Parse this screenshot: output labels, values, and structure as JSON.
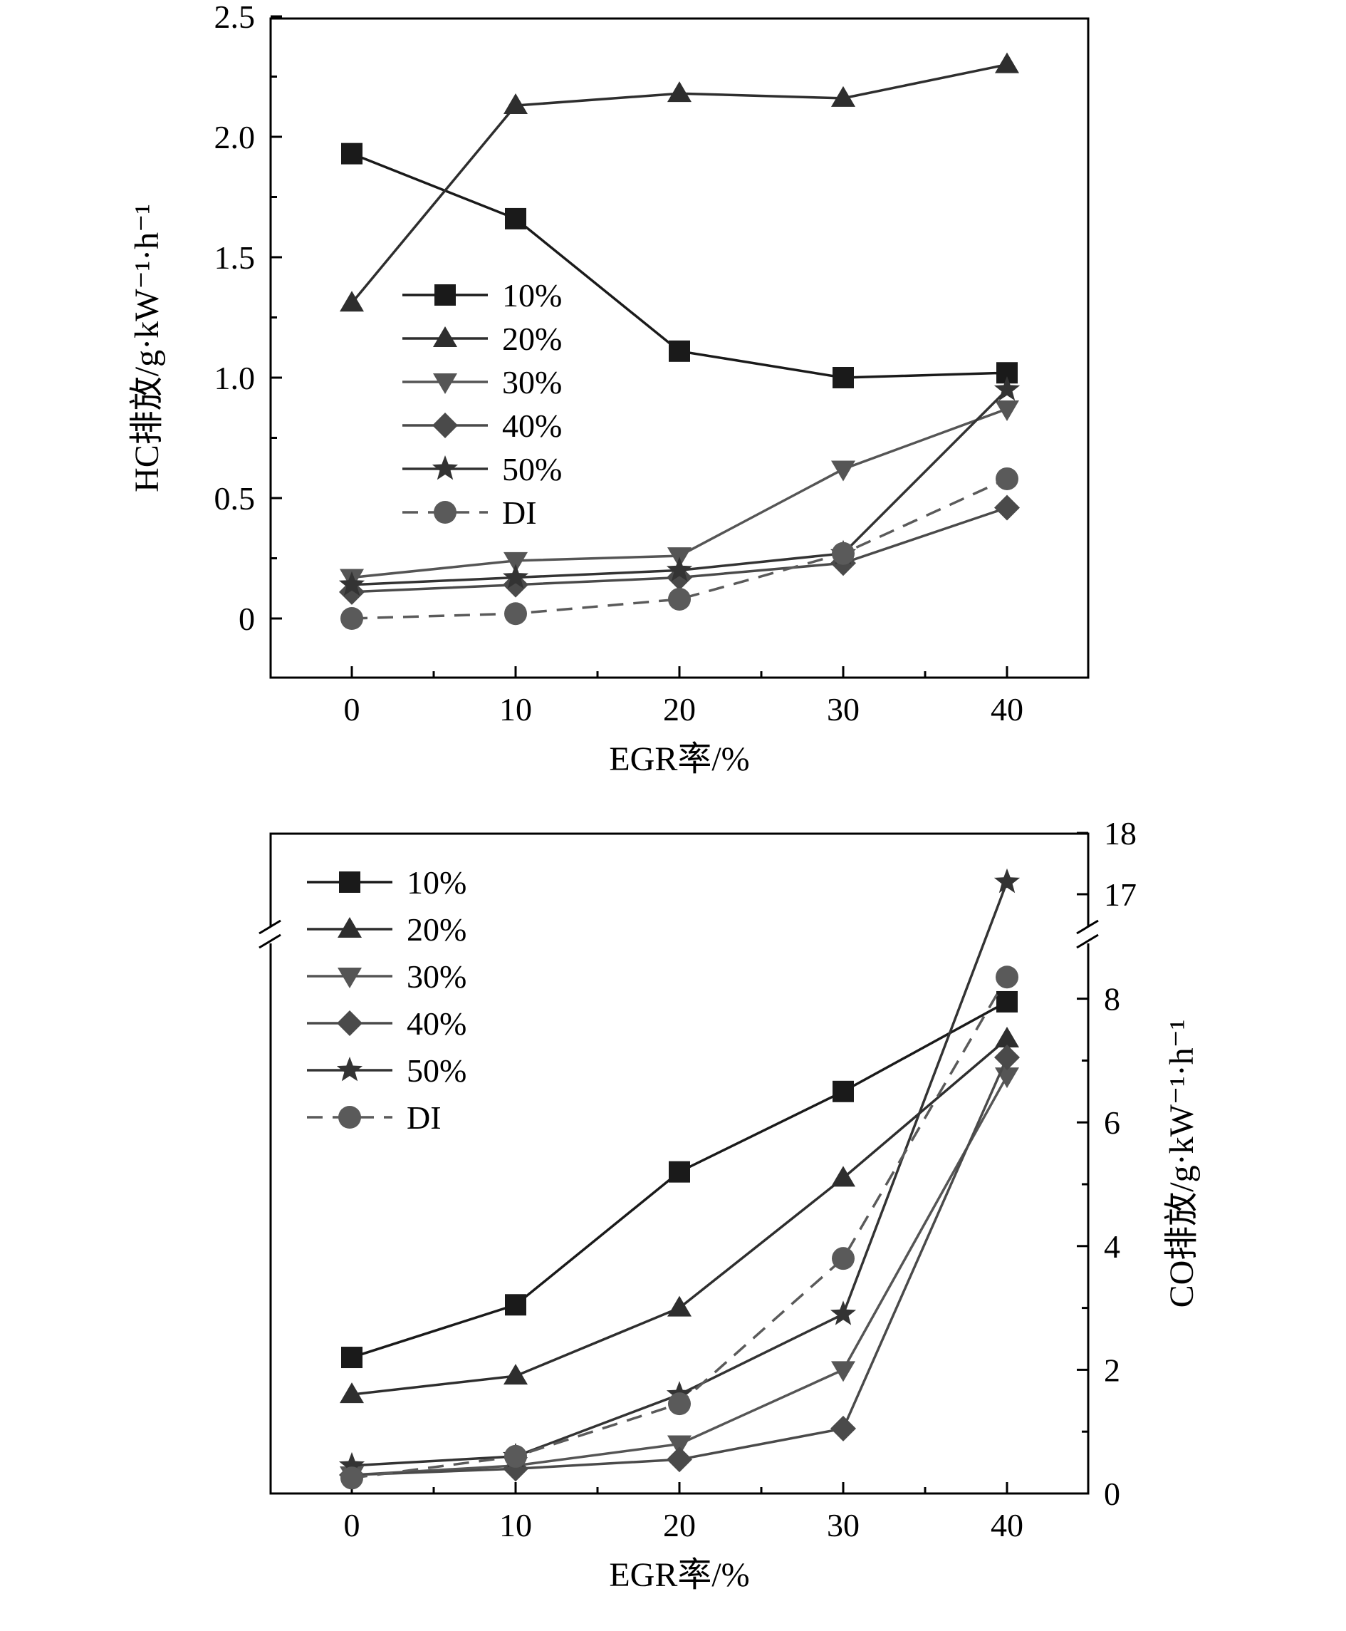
{
  "chart_data": [
    {
      "type": "line",
      "title": "",
      "xlabel": "EGR率/%",
      "ylabel": "HC排放/g·kW⁻¹·h⁻¹",
      "x": [
        0,
        10,
        20,
        30,
        40
      ],
      "x_tick_labels": [
        "0",
        "10",
        "20",
        "30",
        "40"
      ],
      "xlim": [
        -5,
        45
      ],
      "ylim": [
        -0.25,
        2.5
      ],
      "y_ticks": [
        0,
        0.5,
        1.0,
        1.5,
        2.0,
        2.5
      ],
      "y_tick_labels": [
        "0",
        "0.5",
        "1.0",
        "1.5",
        "2.0",
        "2.5"
      ],
      "y_axis_side": "left",
      "legend_position": "middle-left",
      "series": [
        {
          "name": "10%",
          "marker": "square",
          "color": "#1a1a1a",
          "dash": false,
          "values": [
            1.93,
            1.66,
            1.11,
            1.0,
            1.02
          ]
        },
        {
          "name": "20%",
          "marker": "triangle-up",
          "color": "#2e2e2e",
          "dash": false,
          "values": [
            1.31,
            2.13,
            2.18,
            2.16,
            2.3
          ]
        },
        {
          "name": "30%",
          "marker": "triangle-down",
          "color": "#555555",
          "dash": false,
          "values": [
            0.17,
            0.24,
            0.26,
            0.62,
            0.87
          ]
        },
        {
          "name": "40%",
          "marker": "diamond",
          "color": "#4a4a4a",
          "dash": false,
          "values": [
            0.11,
            0.14,
            0.17,
            0.23,
            0.46
          ]
        },
        {
          "name": "50%",
          "marker": "star",
          "color": "#333333",
          "dash": false,
          "values": [
            0.14,
            0.17,
            0.2,
            0.27,
            0.95
          ]
        },
        {
          "name": "DI",
          "marker": "circle",
          "color": "#5a5a5a",
          "dash": true,
          "values": [
            0.0,
            0.02,
            0.08,
            0.27,
            0.58
          ]
        }
      ]
    },
    {
      "type": "line",
      "title": "",
      "xlabel": "EGR率/%",
      "ylabel": "CO排放/g·kW⁻¹·h⁻¹",
      "x": [
        0,
        10,
        20,
        30,
        40
      ],
      "x_tick_labels": [
        "0",
        "10",
        "20",
        "30",
        "40"
      ],
      "xlim": [
        -5,
        45
      ],
      "ylim": [
        0,
        18
      ],
      "axis_break": [
        8.8,
        16.5
      ],
      "y_ticks": [
        0,
        2,
        4,
        6,
        8,
        17,
        18
      ],
      "y_tick_labels": [
        "0",
        "2",
        "4",
        "6",
        "8",
        "17",
        "18"
      ],
      "y_axis_side": "right",
      "legend_position": "top-left",
      "series": [
        {
          "name": "10%",
          "marker": "square",
          "color": "#1a1a1a",
          "dash": false,
          "values": [
            2.2,
            3.05,
            5.2,
            6.5,
            7.95
          ]
        },
        {
          "name": "20%",
          "marker": "triangle-up",
          "color": "#2e2e2e",
          "dash": false,
          "values": [
            1.6,
            1.9,
            3.0,
            5.1,
            7.35
          ]
        },
        {
          "name": "30%",
          "marker": "triangle-down",
          "color": "#555555",
          "dash": false,
          "values": [
            0.3,
            0.45,
            0.8,
            2.0,
            6.75
          ]
        },
        {
          "name": "40%",
          "marker": "diamond",
          "color": "#4a4a4a",
          "dash": false,
          "values": [
            0.3,
            0.4,
            0.55,
            1.05,
            7.05
          ]
        },
        {
          "name": "50%",
          "marker": "star",
          "color": "#333333",
          "dash": false,
          "values": [
            0.45,
            0.6,
            1.6,
            2.9,
            17.2
          ]
        },
        {
          "name": "DI",
          "marker": "circle",
          "color": "#5a5a5a",
          "dash": true,
          "values": [
            0.25,
            0.6,
            1.45,
            3.8,
            8.35
          ]
        }
      ]
    }
  ]
}
